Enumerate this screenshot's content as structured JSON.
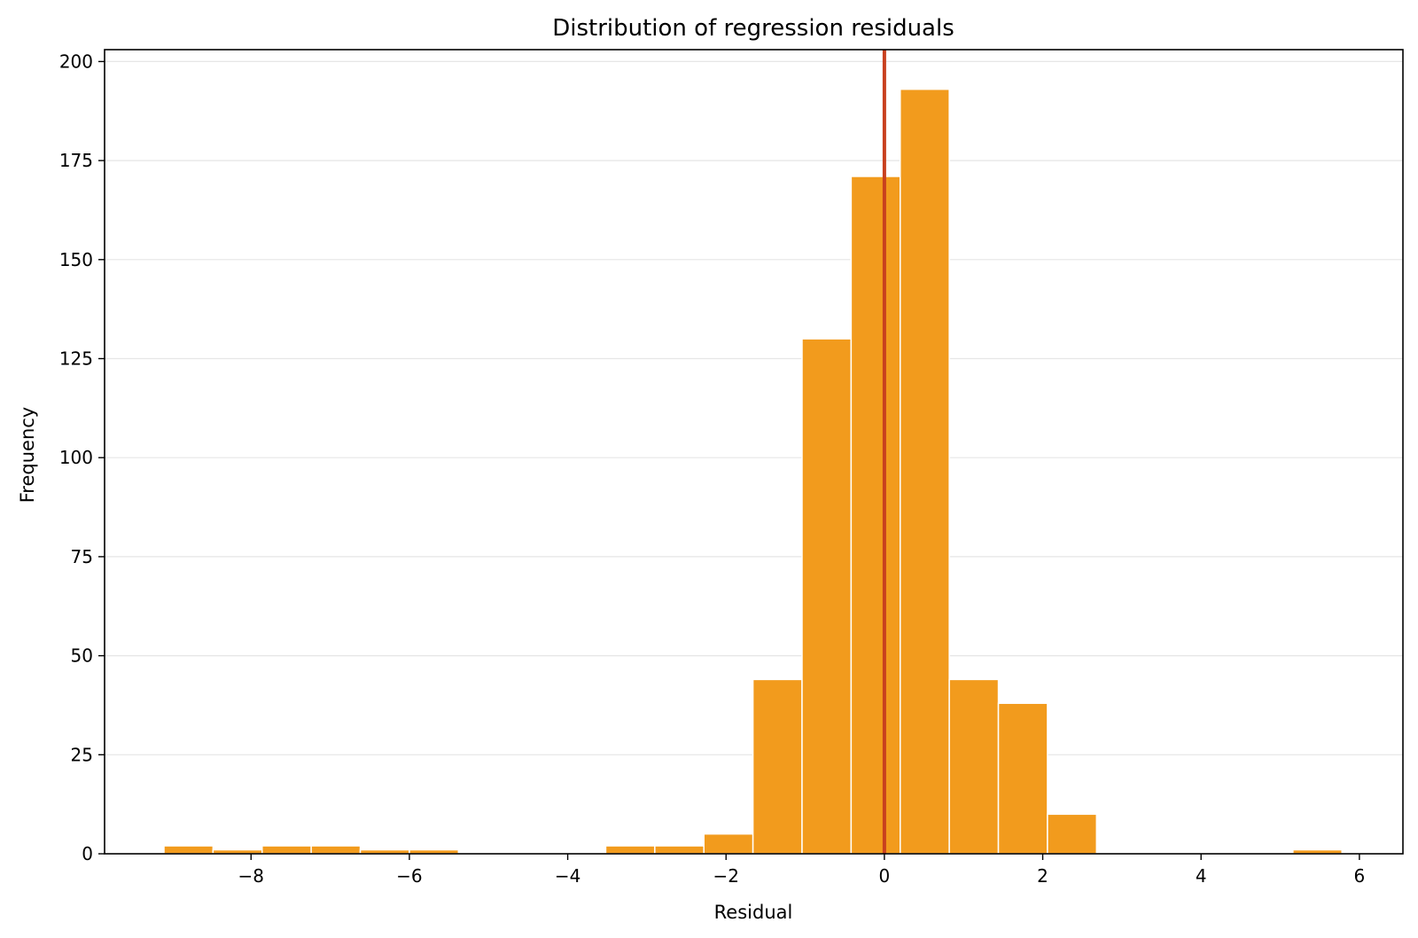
{
  "chart_data": {
    "type": "bar",
    "title": "Distribution of regression residuals",
    "xlabel": "Residual",
    "ylabel": "Frequency",
    "xlim": [
      -9.85,
      6.55
    ],
    "ylim": [
      0,
      203
    ],
    "xticks": [
      -8,
      -6,
      -4,
      -2,
      0,
      2,
      4,
      6
    ],
    "xtick_labels": [
      "−8",
      "−6",
      "−4",
      "−2",
      "0",
      "2",
      "4",
      "6"
    ],
    "yticks": [
      0,
      25,
      50,
      75,
      100,
      125,
      150,
      175,
      200
    ],
    "ytick_labels": [
      "0",
      "25",
      "50",
      "75",
      "100",
      "125",
      "150",
      "175",
      "200"
    ],
    "grid": "y-major",
    "bin_edges": [
      -9.1,
      -8.48,
      -7.86,
      -7.24,
      -6.62,
      -6.0,
      -5.38,
      -4.76,
      -4.14,
      -3.52,
      -2.9,
      -2.28,
      -1.66,
      -1.04,
      -0.42,
      0.2,
      0.82,
      1.44,
      2.06,
      2.68,
      3.3,
      3.92,
      4.54,
      5.16,
      5.78
    ],
    "counts": [
      2,
      1,
      2,
      2,
      1,
      1,
      0,
      0,
      0,
      2,
      2,
      5,
      44,
      130,
      171,
      193,
      44,
      38,
      10,
      0,
      0,
      0,
      0,
      1
    ],
    "reference_line": {
      "x": 0,
      "color": "#c8401e"
    },
    "colors": {
      "bar": "#f29b1d",
      "reference": "#c8401e"
    }
  }
}
